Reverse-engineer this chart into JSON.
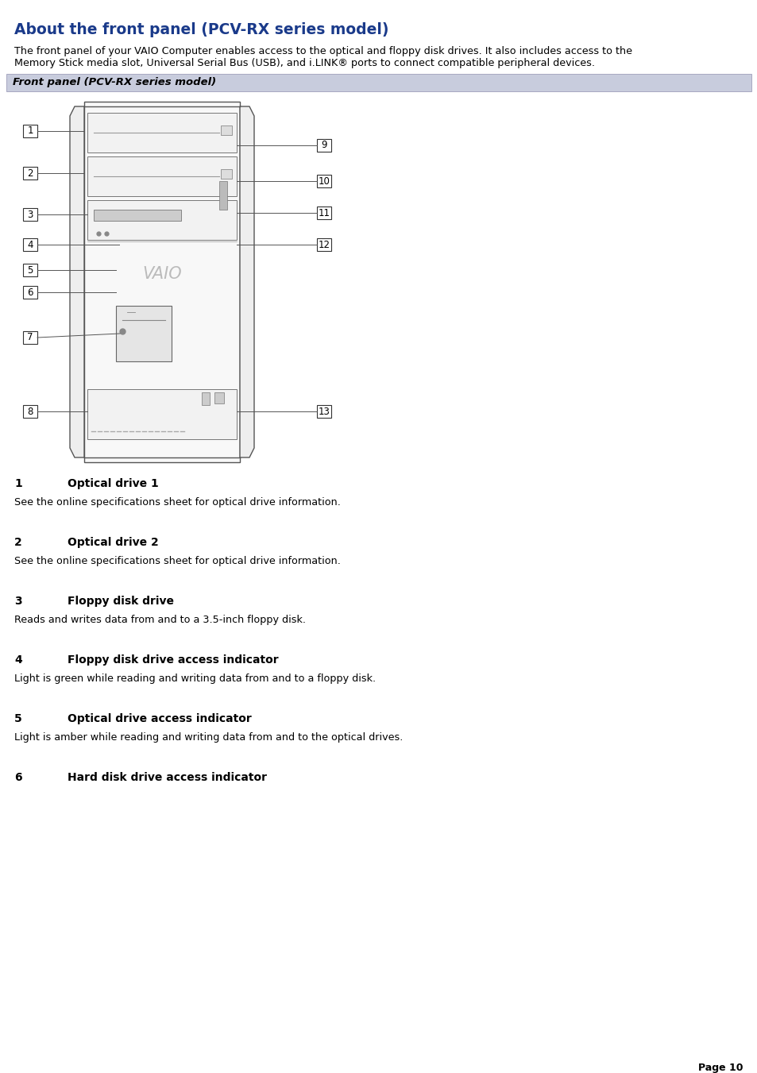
{
  "title": "About the front panel (PCV-RX series model)",
  "title_color": "#1a3a8a",
  "bg_color": "#ffffff",
  "intro_line1": "The front panel of your VAIO Computer enables access to the optical and floppy disk drives. It also includes access to the",
  "intro_line2": "Memory Stick media slot, Universal Serial Bus (USB), and i.LINK® ports to connect compatible peripheral devices.",
  "box_label": "Front panel (PCV-RX series model)",
  "box_bg": "#c8ccdd",
  "items": [
    {
      "num": "1",
      "bold": "Optical drive 1",
      "desc": "See the online specifications sheet for optical drive information."
    },
    {
      "num": "2",
      "bold": "Optical drive 2",
      "desc": "See the online specifications sheet for optical drive information."
    },
    {
      "num": "3",
      "bold": "Floppy disk drive",
      "desc": "Reads and writes data from and to a 3.5-inch floppy disk."
    },
    {
      "num": "4",
      "bold": "Floppy disk drive access indicator",
      "desc": "Light is green while reading and writing data from and to a floppy disk."
    },
    {
      "num": "5",
      "bold": "Optical drive access indicator",
      "desc": "Light is amber while reading and writing data from and to the optical drives."
    },
    {
      "num": "6",
      "bold": "Hard disk drive access indicator",
      "desc": ""
    }
  ],
  "page_num": "Page 10"
}
